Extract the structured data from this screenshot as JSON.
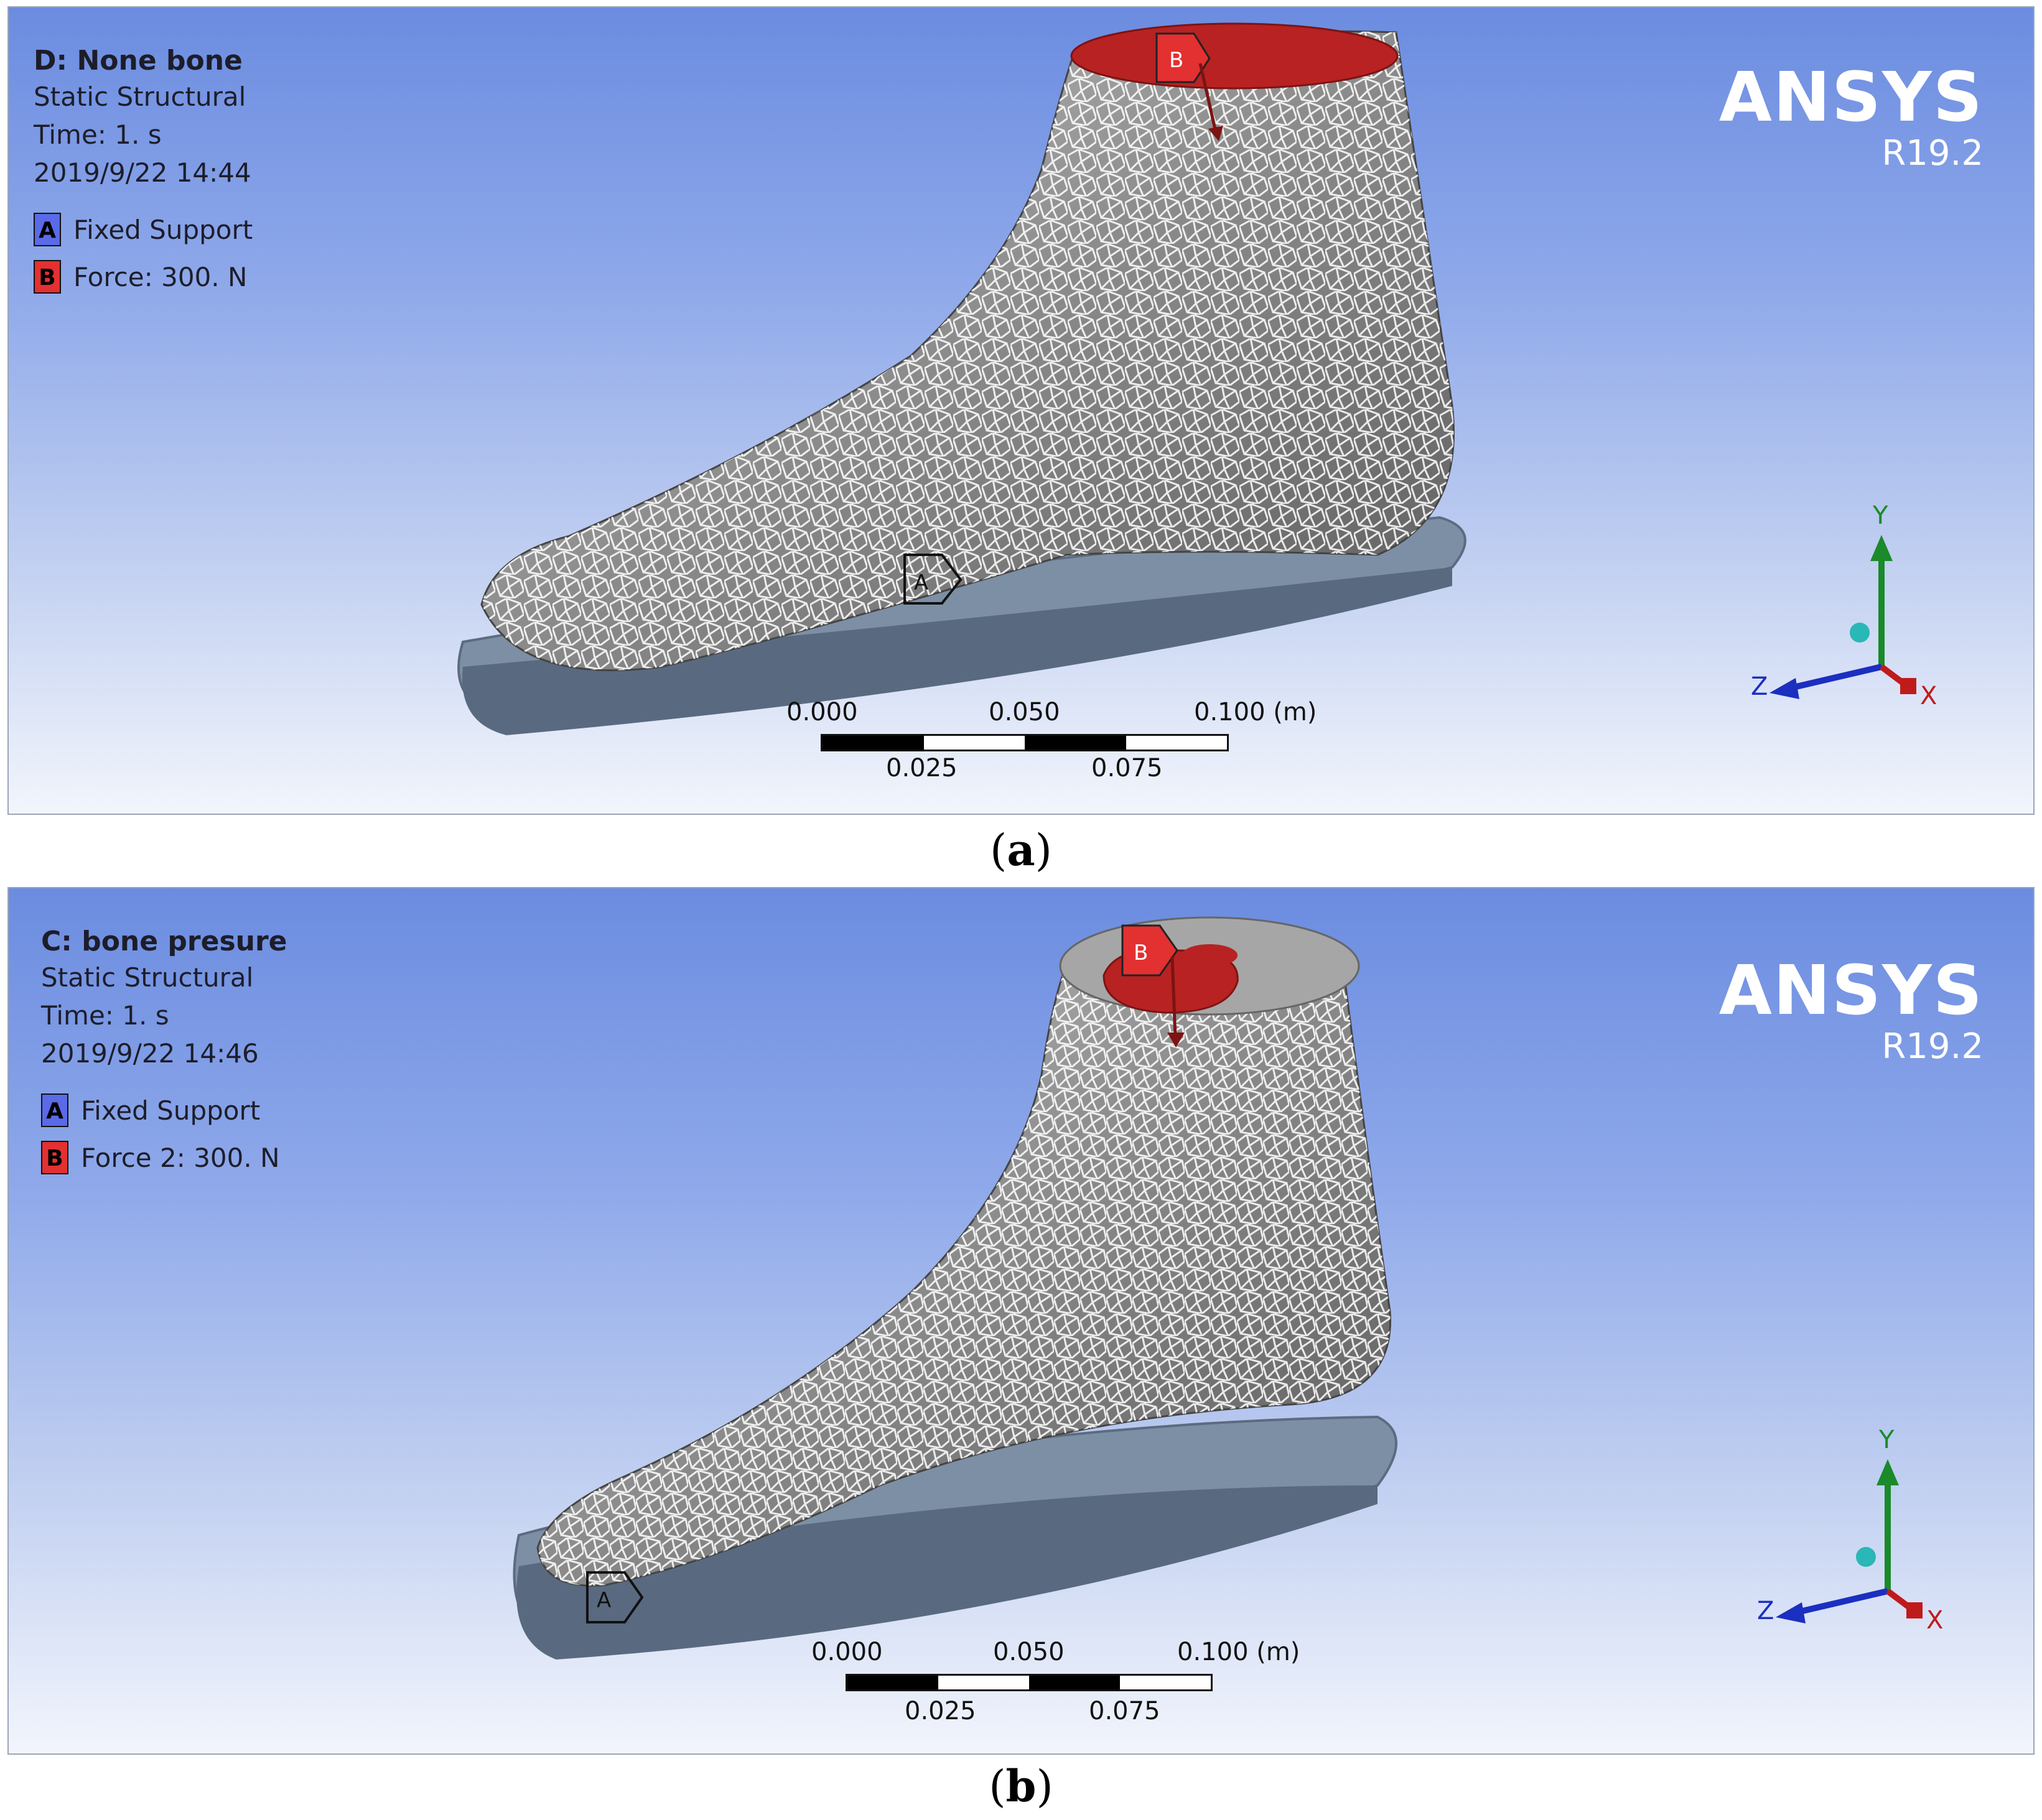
{
  "panels": [
    {
      "name": "D: None bone",
      "analysis": "Static Structural",
      "time": "Time: 1. s",
      "timestamp": "2019/9/22 14:44",
      "legend": [
        {
          "key": "A",
          "label": "Fixed Support",
          "color": "#5a6ae8"
        },
        {
          "key": "B",
          "label": "Force: 300. N",
          "color": "#e33030"
        }
      ],
      "brand": {
        "logo": "ANSYS",
        "version": "R19.2"
      },
      "scale": {
        "top_ticks": [
          "0.000",
          "0.050",
          "0.100 (m)"
        ],
        "bottom_ticks": [
          "0.025",
          "0.075"
        ]
      },
      "axes": {
        "x": "X",
        "y": "Y",
        "z": "Z"
      },
      "markers": {
        "fixed": "A",
        "force": "B"
      },
      "caption": {
        "open": "(",
        "letter": "a",
        "close": ")"
      }
    },
    {
      "name": "C: bone presure",
      "analysis": "Static Structural",
      "time": "Time: 1. s",
      "timestamp": "2019/9/22 14:46",
      "legend": [
        {
          "key": "A",
          "label": "Fixed Support",
          "color": "#5a6ae8"
        },
        {
          "key": "B",
          "label": "Force 2: 300. N",
          "color": "#e33030"
        }
      ],
      "brand": {
        "logo": "ANSYS",
        "version": "R19.2"
      },
      "scale": {
        "top_ticks": [
          "0.000",
          "0.050",
          "0.100 (m)"
        ],
        "bottom_ticks": [
          "0.025",
          "0.075"
        ]
      },
      "axes": {
        "x": "X",
        "y": "Y",
        "z": "Z"
      },
      "markers": {
        "fixed": "A",
        "force": "B"
      },
      "caption": {
        "open": "(",
        "letter": "b",
        "close": ")"
      }
    }
  ],
  "colors": {
    "force": "#b82222",
    "fixed": "#5a6ae8",
    "mesh_body": "#8c8c8c",
    "insole": "#7d8fa5"
  },
  "icons": [
    "force-arrow-icon",
    "fixed-support-marker-icon",
    "coordinate-triad-icon"
  ]
}
